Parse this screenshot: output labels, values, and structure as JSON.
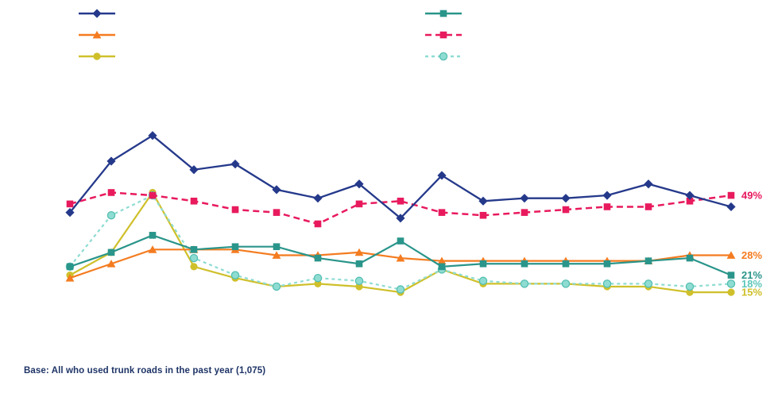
{
  "legend": {
    "left_column": [
      "dark-blue-solid-diamond",
      "orange-solid-triangle",
      "yellow-solid-circle"
    ],
    "right_column": [
      "teal-solid-square",
      "pink-dashed-square",
      "light-teal-dashed-circle"
    ]
  },
  "chart_data": {
    "type": "line",
    "title": "",
    "xlabel": "",
    "ylabel": "",
    "x_labels": [],
    "x_count": 17,
    "ylim": [
      0,
      80
    ],
    "grid": false,
    "legend_position": "top",
    "draw_order": [
      "yellow-solid-circle",
      "light-teal-dashed-circle",
      "orange-solid-triangle",
      "teal-solid-square",
      "pink-dashed-square",
      "dark-blue-solid-diamond"
    ],
    "series": [
      {
        "name": "dark-blue-solid-diamond",
        "legend_label": "",
        "color": "#25398b",
        "marker": "diamond",
        "line": "solid",
        "width": 2.3,
        "values": [
          43,
          61,
          70,
          58,
          60,
          51,
          48,
          53,
          41,
          56,
          47,
          48,
          48,
          49,
          53,
          49,
          45
        ],
        "end_label": ""
      },
      {
        "name": "orange-solid-triangle",
        "legend_label": "",
        "color": "#f47c20",
        "marker": "triangle",
        "line": "solid",
        "width": 2.2,
        "values": [
          20,
          25,
          30,
          30,
          30,
          28,
          28,
          29,
          27,
          26,
          26,
          26,
          26,
          26,
          26,
          28,
          28
        ],
        "end_label": "28%"
      },
      {
        "name": "yellow-solid-circle",
        "legend_label": "",
        "color": "#cfc02b",
        "marker": "circle",
        "line": "solid",
        "width": 2.2,
        "values": [
          21,
          29,
          50,
          24,
          20,
          17,
          18,
          17,
          15,
          23,
          18,
          18,
          18,
          17,
          17,
          15,
          15
        ],
        "end_label": "15%"
      },
      {
        "name": "teal-solid-square",
        "legend_label": "",
        "color": "#2a958a",
        "marker": "square",
        "line": "solid",
        "width": 2.2,
        "values": [
          24,
          29,
          35,
          30,
          31,
          31,
          27,
          25,
          33,
          24,
          25,
          25,
          25,
          25,
          26,
          27,
          21
        ],
        "end_label": "21%"
      },
      {
        "name": "pink-dashed-square",
        "legend_label": "",
        "color": "#e81a5d",
        "marker": "square",
        "line": "long-dash",
        "width": 2.5,
        "values": [
          46,
          50,
          49,
          47,
          44,
          43,
          39,
          46,
          47,
          43,
          42,
          43,
          44,
          45,
          45,
          47,
          49
        ],
        "end_label": "49%"
      },
      {
        "name": "light-teal-dashed-circle",
        "legend_label": "",
        "color": "#8edcd2",
        "marker": "circle",
        "line": "short-dash",
        "width": 2.2,
        "marker_stroke": "#55bfb2",
        "label_color": "#5fc8bb",
        "values": [
          24,
          42,
          49,
          27,
          21,
          17,
          20,
          19,
          16,
          23,
          19,
          18,
          18,
          18,
          18,
          17,
          18
        ],
        "end_label": "18%"
      }
    ]
  },
  "footer": {
    "base_note": "Base: All who used trunk roads in the past year (1,075)"
  }
}
